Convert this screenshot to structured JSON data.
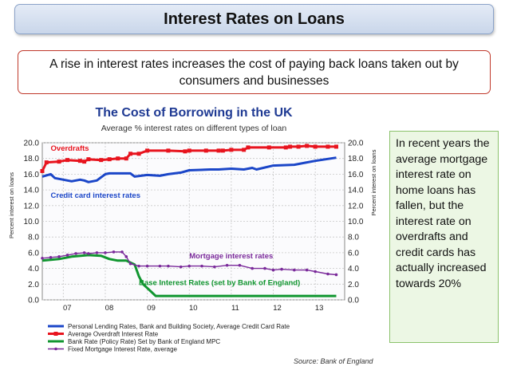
{
  "header": {
    "title": "Interest Rates on Loans"
  },
  "subheader": {
    "text": "A rise in interest rates increases the cost of paying back loans taken out by consumers and businesses"
  },
  "note": {
    "text": "In recent years the average mortgage interest rate on home loans has fallen, but the interest rate on overdrafts and credit cards has actually increased towards 20%"
  },
  "colors": {
    "overdraft": "#e8141e",
    "credit": "#1b46c8",
    "base": "#119630",
    "mortgage": "#7a2a9a",
    "accent": "#1f3a93"
  },
  "chart_data": {
    "type": "line",
    "title": "The Cost of Borrowing in the UK",
    "subtitle": "Average % interest rates on different types of loan",
    "ylabel": "Percent interest on loans",
    "ylim": [
      0,
      20
    ],
    "yticks": [
      "0.0",
      "2.0",
      "4.0",
      "6.0",
      "8.0",
      "10.0",
      "12.0",
      "14.0",
      "16.0",
      "18.0",
      "20.0"
    ],
    "xlim": [
      2006.5,
      2013.7
    ],
    "xticks": [
      {
        "label": "07",
        "x": 2007
      },
      {
        "label": "08",
        "x": 2008
      },
      {
        "label": "09",
        "x": 2009
      },
      {
        "label": "10",
        "x": 2010
      },
      {
        "label": "11",
        "x": 2011
      },
      {
        "label": "12",
        "x": 2012
      },
      {
        "label": "13",
        "x": 2013
      }
    ],
    "annotations": [
      {
        "text": "Overdrafts",
        "x": 2006.7,
        "y": 19.0,
        "color": "overdraft"
      },
      {
        "text": "Credit card interest rates",
        "x": 2006.7,
        "y": 13.0,
        "color": "credit"
      },
      {
        "text": "Mortgage interest rates",
        "x": 2010.0,
        "y": 5.3,
        "color": "mortgage"
      },
      {
        "text": "Base Interest Rates (set by Bank of England)",
        "x": 2008.8,
        "y": 1.9,
        "color": "base"
      }
    ],
    "series": [
      {
        "name": "Average Overdraft Interest Rate",
        "key": "overdraft",
        "marker": "square",
        "width": 3,
        "x": [
          2006.5,
          2006.6,
          2006.9,
          2007.1,
          2007.4,
          2007.5,
          2007.6,
          2007.9,
          2008.1,
          2008.3,
          2008.5,
          2008.6,
          2008.8,
          2009.0,
          2009.5,
          2009.9,
          2010.0,
          2010.4,
          2010.7,
          2010.8,
          2011.0,
          2011.3,
          2011.4,
          2011.9,
          2012.3,
          2012.4,
          2012.6,
          2012.8,
          2013.0,
          2013.3,
          2013.5
        ],
        "y": [
          16.4,
          17.5,
          17.6,
          17.8,
          17.7,
          17.6,
          17.9,
          17.8,
          17.9,
          18.0,
          18.0,
          18.6,
          18.6,
          19.0,
          19.0,
          18.9,
          19.0,
          19.0,
          19.0,
          19.0,
          19.1,
          19.1,
          19.4,
          19.4,
          19.4,
          19.5,
          19.5,
          19.6,
          19.5,
          19.5,
          19.5
        ]
      },
      {
        "name": "Personal Lending Rates, Bank and Building Society, Average Credit Card Rate",
        "key": "credit",
        "marker": "none",
        "width": 3,
        "x": [
          2006.5,
          2006.7,
          2006.8,
          2007.0,
          2007.2,
          2007.4,
          2007.5,
          2007.6,
          2007.8,
          2007.9,
          2008.0,
          2008.1,
          2008.5,
          2008.6,
          2008.7,
          2009.0,
          2009.3,
          2009.5,
          2009.8,
          2010.0,
          2010.5,
          2010.7,
          2011.0,
          2011.3,
          2011.5,
          2011.6,
          2012.0,
          2012.5,
          2012.6,
          2013.0,
          2013.5
        ],
        "y": [
          15.7,
          16.0,
          15.5,
          15.3,
          15.1,
          15.3,
          15.2,
          15.0,
          15.2,
          15.6,
          16.0,
          16.1,
          16.1,
          16.1,
          15.7,
          15.9,
          15.8,
          16.0,
          16.2,
          16.5,
          16.6,
          16.6,
          16.7,
          16.6,
          16.8,
          16.6,
          17.1,
          17.2,
          17.3,
          17.7,
          18.1
        ]
      },
      {
        "name": "Bank Rate (Policy Rate) Set by Bank of England MPC",
        "key": "base",
        "marker": "none",
        "width": 3,
        "x": [
          2006.5,
          2006.9,
          2007.0,
          2007.2,
          2007.6,
          2007.9,
          2008.0,
          2008.1,
          2008.3,
          2008.5,
          2008.7,
          2008.8,
          2008.9,
          2009.0,
          2009.1,
          2009.2,
          2013.5
        ],
        "y": [
          5.0,
          5.2,
          5.3,
          5.5,
          5.7,
          5.6,
          5.4,
          5.2,
          5.0,
          5.0,
          4.5,
          3.0,
          2.0,
          1.5,
          1.0,
          0.5,
          0.5
        ]
      },
      {
        "name": "Fixed Mortgage Interest Rate, average",
        "key": "mortgage",
        "marker": "dot",
        "width": 1.4,
        "x": [
          2006.5,
          2006.7,
          2006.9,
          2007.1,
          2007.3,
          2007.5,
          2007.6,
          2007.8,
          2008.0,
          2008.2,
          2008.4,
          2008.5,
          2008.6,
          2008.8,
          2009.0,
          2009.3,
          2009.5,
          2009.8,
          2010.0,
          2010.3,
          2010.6,
          2010.9,
          2011.2,
          2011.5,
          2011.8,
          2012.0,
          2012.2,
          2012.5,
          2012.8,
          2013.0,
          2013.3,
          2013.5
        ],
        "y": [
          5.3,
          5.4,
          5.5,
          5.7,
          5.9,
          6.0,
          5.9,
          6.0,
          6.0,
          6.1,
          6.1,
          5.5,
          4.6,
          4.3,
          4.3,
          4.3,
          4.3,
          4.2,
          4.3,
          4.3,
          4.2,
          4.4,
          4.4,
          4.0,
          4.0,
          3.8,
          3.9,
          3.8,
          3.8,
          3.6,
          3.3,
          3.2
        ]
      }
    ],
    "source": "Source: Bank of England"
  }
}
